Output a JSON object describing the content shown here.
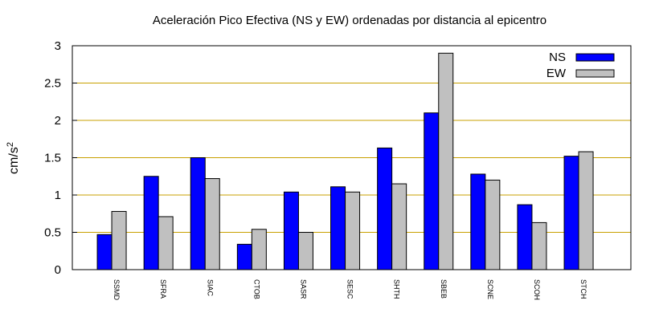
{
  "chart_data": {
    "type": "bar",
    "title": "Aceleración Pico Efectiva (NS y EW) ordenadas por distancia al epicentro",
    "xlabel": "",
    "ylabel": "cm/s",
    "ylabel_superscript": "2",
    "ylim": [
      0,
      3
    ],
    "yticks": [
      "0",
      "0.5",
      "1",
      "1.5",
      "2",
      "2.5",
      "3"
    ],
    "ytick_values": [
      0,
      0.5,
      1,
      1.5,
      2,
      2.5,
      3
    ],
    "grid": "horizontal",
    "legend_position": "top-right",
    "categories": [
      "SSMD",
      "SFRA",
      "SIAC",
      "CTOB",
      "SASR",
      "SESC",
      "SHTH",
      "SBEB",
      "SCNE",
      "SCOH",
      "STCH"
    ],
    "series": [
      {
        "name": "NS",
        "color": "#0000ff",
        "values": [
          0.47,
          1.25,
          1.5,
          0.34,
          1.04,
          1.11,
          1.63,
          2.1,
          1.28,
          0.87,
          1.52
        ]
      },
      {
        "name": "EW",
        "color": "#c0c0c0",
        "values": [
          0.78,
          0.71,
          1.22,
          0.54,
          0.5,
          1.04,
          1.15,
          2.9,
          1.2,
          0.63,
          1.58
        ]
      }
    ],
    "grid_color": "#c8a000"
  }
}
